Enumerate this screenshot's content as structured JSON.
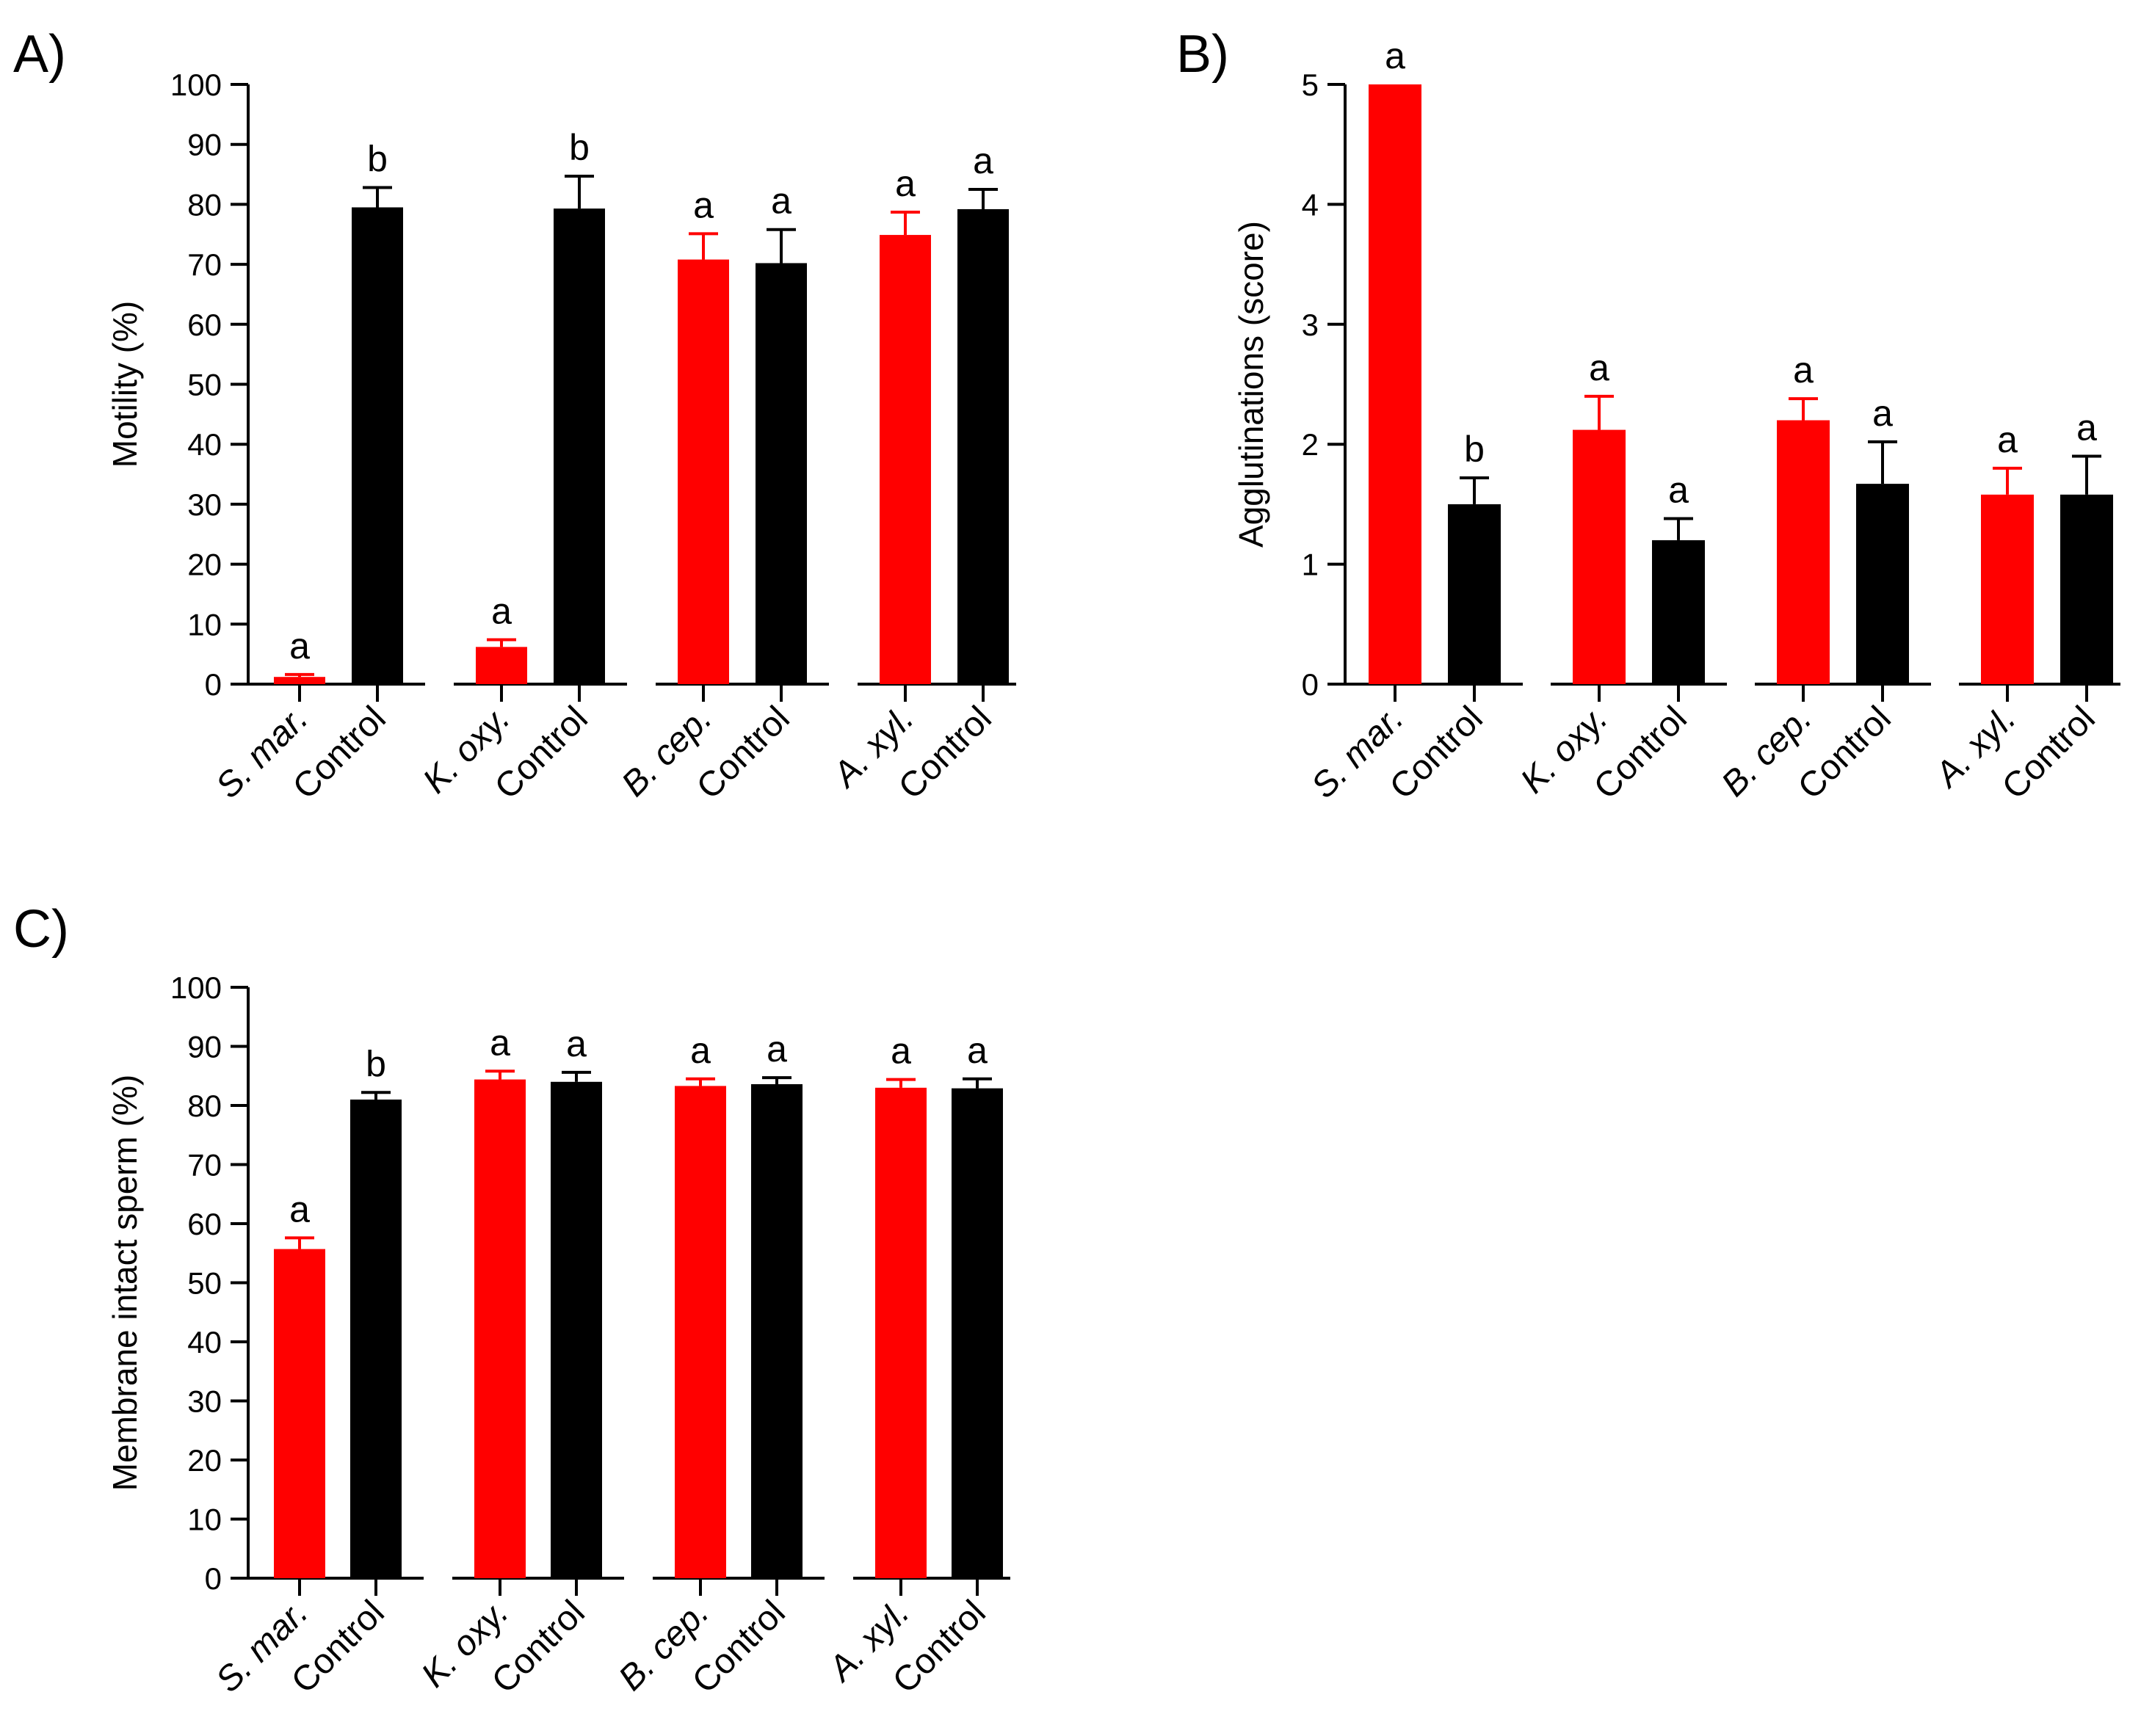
{
  "chart_data": [
    {
      "panel": "A)",
      "type": "bar",
      "ylabel": "Motility (%)",
      "ylim": [
        0,
        100
      ],
      "yticks": [
        0,
        10,
        20,
        30,
        40,
        50,
        60,
        70,
        80,
        90,
        100
      ],
      "categories": [
        "S. mar.",
        "Control",
        "K. oxy.",
        "Control",
        "B. cep.",
        "Control",
        "A. xyl.",
        "Control"
      ],
      "italic_parts": [
        "S. mar.",
        "",
        "K. oxy.",
        "",
        "B. cep.",
        "",
        "A. xyl.",
        ""
      ],
      "bar_colors": [
        "#ff0000",
        "#000000",
        "#ff0000",
        "#000000",
        "#ff0000",
        "#000000",
        "#ff0000",
        "#000000"
      ],
      "values": [
        1.2,
        79.5,
        6.2,
        79.3,
        70.8,
        70.2,
        74.9,
        79.2
      ],
      "errors": [
        0.4,
        3.3,
        1.2,
        5.4,
        4.3,
        5.6,
        3.8,
        3.3
      ],
      "significance": [
        "a",
        "b",
        "a",
        "b",
        "a",
        "a",
        "a",
        "a"
      ]
    },
    {
      "panel": "B)",
      "type": "bar",
      "ylabel": "Agglutinations (score)",
      "ylim": [
        0,
        5
      ],
      "yticks": [
        0,
        1,
        2,
        3,
        4,
        5
      ],
      "categories": [
        "S. mar.",
        "Control",
        "K. oxy.",
        "Control",
        "B. cep.",
        "Control",
        "A. xyl.",
        "Control"
      ],
      "italic_parts": [
        "S. mar.",
        "",
        "K. oxy.",
        "",
        "B. cep.",
        "",
        "A. xyl.",
        ""
      ],
      "bar_colors": [
        "#ff0000",
        "#000000",
        "#ff0000",
        "#000000",
        "#ff0000",
        "#000000",
        "#ff0000",
        "#000000"
      ],
      "values": [
        5.0,
        1.5,
        2.12,
        1.2,
        2.2,
        1.67,
        1.58,
        1.58
      ],
      "errors": [
        0,
        0.22,
        0.28,
        0.18,
        0.18,
        0.35,
        0.22,
        0.32
      ],
      "significance": [
        "a",
        "b",
        "a",
        "a",
        "a",
        "a",
        "a",
        "a"
      ]
    },
    {
      "panel": "C)",
      "type": "bar",
      "ylabel": "Membrane intact sperm (%)",
      "ylim": [
        0,
        100
      ],
      "yticks": [
        0,
        10,
        20,
        30,
        40,
        50,
        60,
        70,
        80,
        90,
        100
      ],
      "categories": [
        "S. mar.",
        "Control",
        "K. oxy.",
        "Control",
        "B. cep.",
        "Control",
        "A. xyl.",
        "Control"
      ],
      "italic_parts": [
        "S. mar.",
        "",
        "K. oxy.",
        "",
        "B. cep.",
        "",
        "A. xyl.",
        ""
      ],
      "bar_colors": [
        "#ff0000",
        "#000000",
        "#ff0000",
        "#000000",
        "#ff0000",
        "#000000",
        "#ff0000",
        "#000000"
      ],
      "values": [
        55.7,
        81.0,
        84.4,
        84.0,
        83.3,
        83.6,
        83.0,
        82.9
      ],
      "errors": [
        1.9,
        1.2,
        1.4,
        1.6,
        1.2,
        1.1,
        1.4,
        1.6
      ],
      "significance": [
        "a",
        "b",
        "a",
        "a",
        "a",
        "a",
        "a",
        "a"
      ]
    }
  ]
}
